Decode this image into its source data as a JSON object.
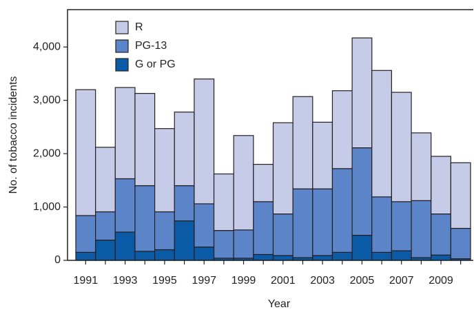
{
  "chart_data": {
    "type": "stacked-bar",
    "x_label": "Year",
    "y_label": "No. of tobacco incidents",
    "categories": [
      "1991",
      null,
      "1993",
      null,
      "1995",
      null,
      "1997",
      null,
      "1999",
      null,
      "2001",
      null,
      "2003",
      null,
      "2005",
      null,
      "2007",
      null,
      "2009",
      null
    ],
    "series": [
      {
        "name": "G or PG",
        "color": "#0b5aa6",
        "values": [
          150,
          380,
          530,
          170,
          200,
          740,
          250,
          40,
          40,
          110,
          90,
          50,
          90,
          150,
          470,
          150,
          180,
          50,
          100,
          30
        ]
      },
      {
        "name": "PG-13",
        "color": "#5c84c9",
        "values": [
          690,
          530,
          1000,
          1230,
          710,
          660,
          810,
          520,
          530,
          990,
          780,
          1290,
          1250,
          1570,
          1640,
          1040,
          920,
          1070,
          770,
          570
        ]
      },
      {
        "name": "R",
        "color": "#c6cce8",
        "values": [
          2360,
          1210,
          1710,
          1730,
          1560,
          1380,
          2340,
          1060,
          1770,
          700,
          1710,
          1730,
          1250,
          1460,
          2060,
          2370,
          2050,
          1270,
          1080,
          1230
        ]
      }
    ],
    "ylim": [
      0,
      4700
    ],
    "yticks": [
      0,
      {
        "value": 1000,
        "label": "1,000"
      },
      {
        "value": 2000,
        "label": "2,000"
      },
      {
        "value": 3000,
        "label": "3,000"
      },
      {
        "value": 4000,
        "label": "4,000"
      }
    ]
  }
}
